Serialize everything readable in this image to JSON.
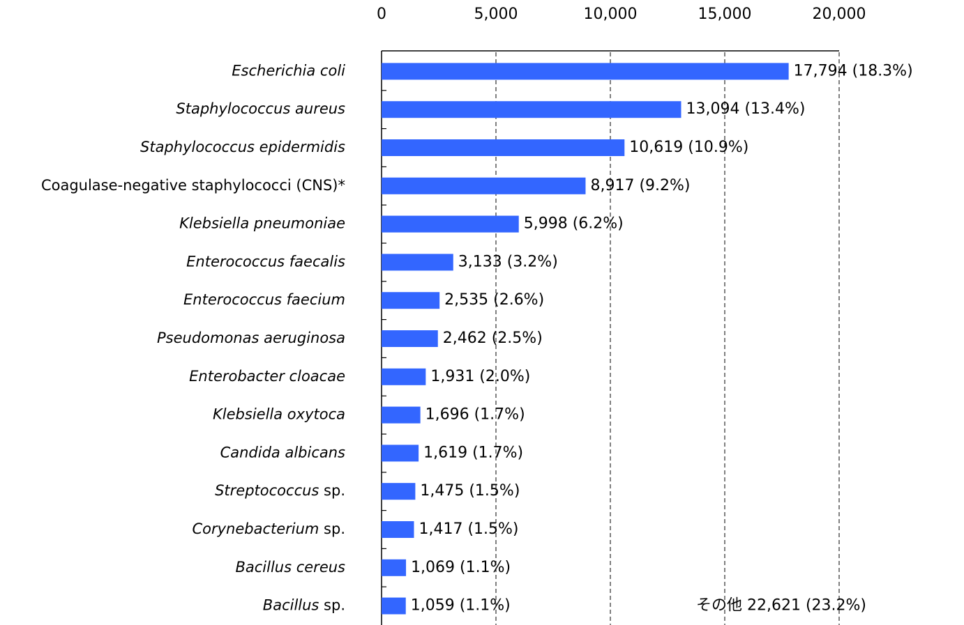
{
  "chart_data": {
    "type": "hbar",
    "categories": [
      "Escherichia coli",
      "Staphylococcus aureus",
      "Staphylococcus epidermidis",
      "Coagulase-negative staphylococci (CNS)*",
      "Klebsiella pneumoniae",
      "Enterococcus faecalis",
      "Enterococcus faecium",
      "Pseudomonas aeruginosa",
      "Enterobacter cloacae",
      "Klebsiella oxytoca",
      "Candida albicans",
      "Streptococcus sp.",
      "Corynebacterium sp.",
      "Bacillus cereus",
      "Bacillus sp."
    ],
    "values": [
      17794,
      13094,
      10619,
      8917,
      5998,
      3133,
      2535,
      2462,
      1931,
      1696,
      1619,
      1475,
      1417,
      1069,
      1059
    ],
    "value_labels": [
      "17,794 (18.3%)",
      "13,094 (13.4%)",
      "10,619 (10.9%)",
      "8,917 (9.2%)",
      "5,998 (6.2%)",
      "3,133 (3.2%)",
      "2,535 (2.6%)",
      "2,462 (2.5%)",
      "1,931 (2.0%)",
      "1,696 (1.7%)",
      "1,619 (1.7%)",
      "1,475 (1.5%)",
      "1,417 (1.5%)",
      "1,069 (1.1%)",
      "1,059 (1.1%)"
    ],
    "annotation": "その他 22,621 (23.2%)",
    "color": "#3366ff",
    "xlim": [
      0,
      20000
    ],
    "xticks": [
      0,
      {
        "value": 5000,
        "label": "5,000"
      },
      {
        "value": 10000,
        "label": "10,000"
      },
      {
        "value": 15000,
        "label": "15,000"
      },
      {
        "value": 20000,
        "label": "20,000"
      }
    ],
    "grid": true
  }
}
